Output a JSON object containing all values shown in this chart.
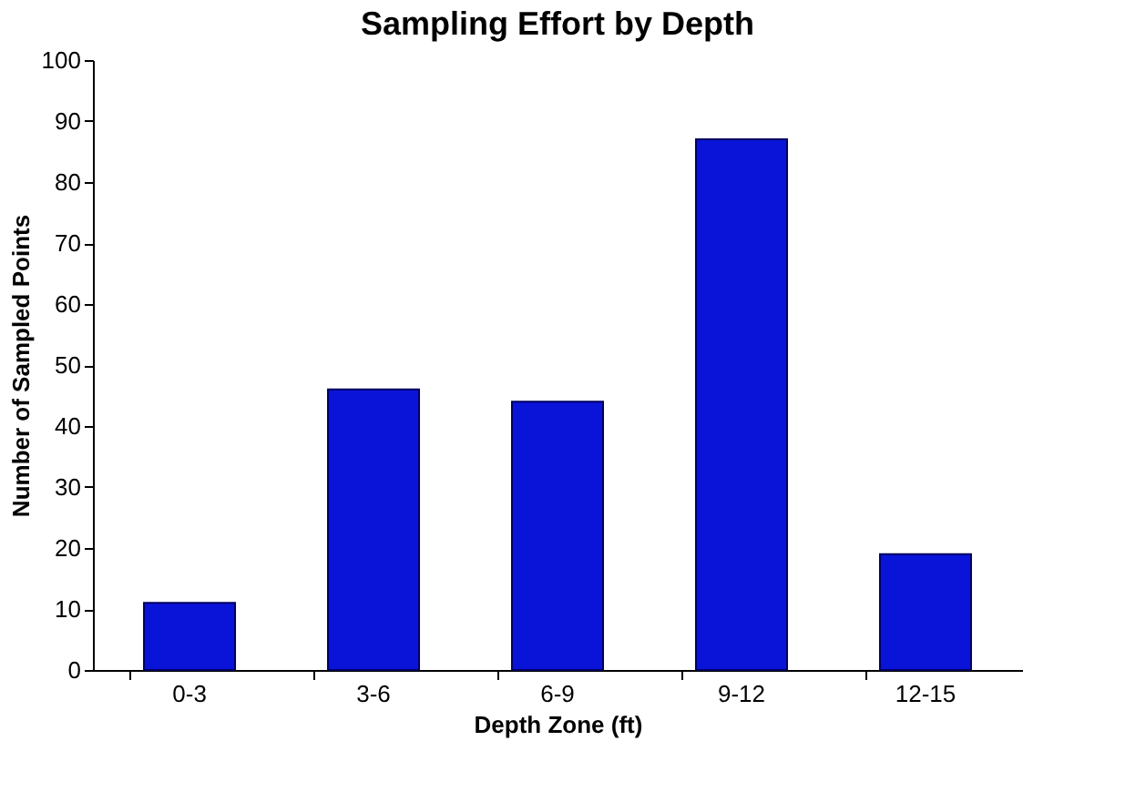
{
  "chart_data": {
    "type": "bar",
    "title": "Sampling Effort by Depth",
    "xlabel": "Depth Zone (ft)",
    "ylabel": "Number of Sampled Points",
    "categories": [
      "0-3",
      "3-6",
      "6-9",
      "9-12",
      "12-15"
    ],
    "values": [
      11,
      46,
      44,
      87,
      19
    ],
    "color": "#0a14d8",
    "ylim": [
      0,
      100
    ],
    "yticks": [
      0,
      10,
      20,
      30,
      40,
      50,
      60,
      70,
      80,
      90,
      100
    ],
    "grid": false
  }
}
